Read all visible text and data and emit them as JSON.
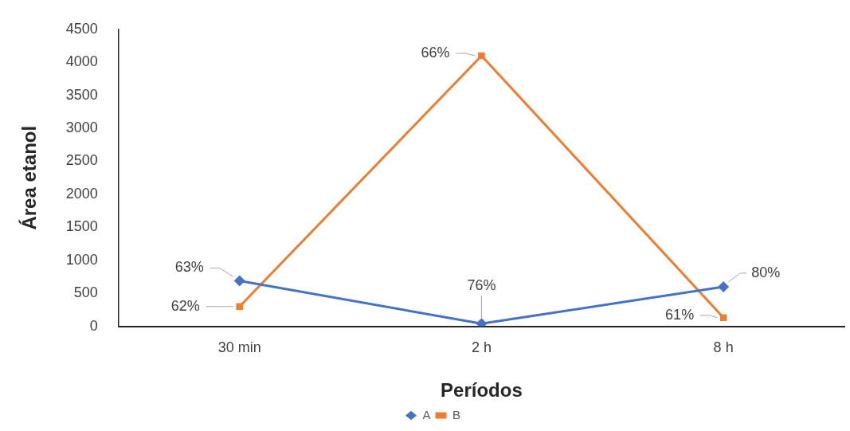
{
  "chart_data": {
    "type": "line",
    "xlabel": "Períodos",
    "ylabel": "Área etanol",
    "categories": [
      "30 min",
      "2 h",
      "8 h"
    ],
    "series": [
      {
        "name": "A",
        "color": "#4472c4",
        "marker": "diamond",
        "values": [
          690,
          40,
          600
        ]
      },
      {
        "name": "B",
        "color": "#ed7d31",
        "marker": "square",
        "values": [
          300,
          4100,
          130
        ]
      }
    ],
    "annotations": [
      {
        "text": "63%",
        "x": "30 min",
        "y": 690
      },
      {
        "text": "76%",
        "x": "2 h",
        "y": 40
      },
      {
        "text": "80%",
        "x": "8 h",
        "y": 600
      },
      {
        "text": "62%",
        "x": "30 min",
        "y": 300
      },
      {
        "text": "66%",
        "x": "2 h",
        "y": 4100
      },
      {
        "text": "61%",
        "x": "8 h",
        "y": 130
      }
    ],
    "ylim": [
      0,
      4500
    ],
    "yticks": [
      0,
      500,
      1000,
      1500,
      2000,
      2500,
      3000,
      3500,
      4000,
      4500
    ],
    "grid": false,
    "legend": "bottom"
  }
}
